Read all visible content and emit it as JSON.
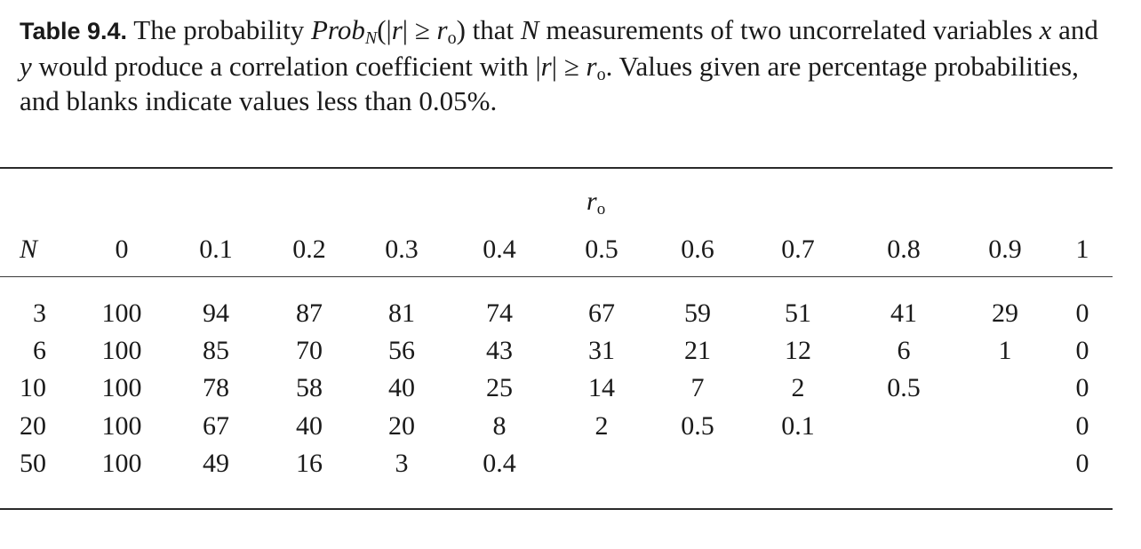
{
  "caption": {
    "label": "Table 9.4.",
    "t1": " The probability ",
    "prob": "Prob",
    "prob_sub": "N",
    "t2": "(|",
    "r1": "r",
    "t3": "| ≥ ",
    "r2": "r",
    "r2_sub": "o",
    "t4": ") that ",
    "n": "N",
    "t5": " measurements of two uncorrelated variables ",
    "x": "x",
    "t6": " and ",
    "y": "y",
    "t7": " would produce a correlation coefficient with |",
    "r3": "r",
    "t8": "| ≥ ",
    "r4": "r",
    "r4_sub": "o",
    "t9": ". Values given are percentage probabilities, and blanks indicate values less than 0.05%."
  },
  "table": {
    "group_header": "r",
    "group_header_sub": "o",
    "n_header": "N",
    "columns": [
      "0",
      "0.1",
      "0.2",
      "0.3",
      "0.4",
      "0.5",
      "0.6",
      "0.7",
      "0.8",
      "0.9",
      "1"
    ],
    "rows": [
      {
        "n": "3",
        "values": [
          "100",
          "94",
          "87",
          "81",
          "74",
          "67",
          "59",
          "51",
          "41",
          "29",
          "0"
        ]
      },
      {
        "n": "6",
        "values": [
          "100",
          "85",
          "70",
          "56",
          "43",
          "31",
          "21",
          "12",
          "6",
          "1",
          "0"
        ]
      },
      {
        "n": "10",
        "values": [
          "100",
          "78",
          "58",
          "40",
          "25",
          "14",
          "7",
          "2",
          "0.5",
          "",
          "0"
        ]
      },
      {
        "n": "20",
        "values": [
          "100",
          "67",
          "40",
          "20",
          "8",
          "2",
          "0.5",
          "0.1",
          "",
          "",
          "0"
        ]
      },
      {
        "n": "50",
        "values": [
          "100",
          "49",
          "16",
          "3",
          "0.4",
          "",
          "",
          "",
          "",
          "",
          "0"
        ]
      }
    ]
  }
}
